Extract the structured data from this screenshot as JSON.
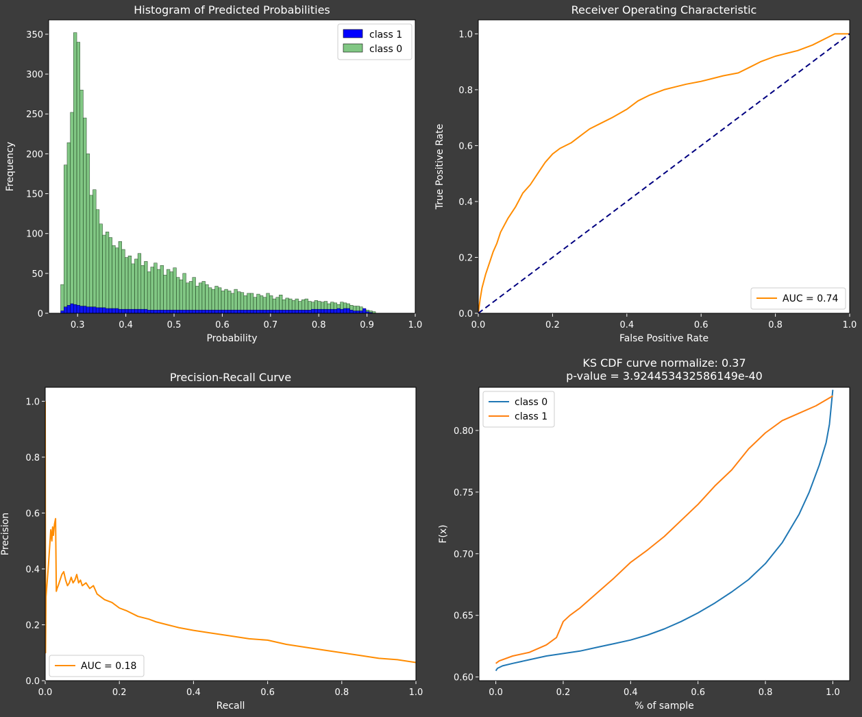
{
  "chart_data": [
    {
      "id": "hist",
      "type": "bar",
      "title": "Histogram of Predicted Probabilities",
      "xlabel": "Probability",
      "ylabel": "Frequency",
      "xlim": [
        0.24,
        1.0
      ],
      "ylim": [
        0,
        368
      ],
      "xticks": [
        0.3,
        0.4,
        0.5,
        0.6,
        0.7,
        0.8,
        0.9,
        1.0
      ],
      "xtick_labels": [
        "0.3",
        "0.4",
        "0.5",
        "0.6",
        "0.7",
        "0.8",
        "0.9",
        "1.0"
      ],
      "yticks": [
        0,
        50,
        100,
        150,
        200,
        250,
        300,
        350
      ],
      "ytick_labels": [
        "0",
        "50",
        "100",
        "150",
        "200",
        "250",
        "300",
        "350"
      ],
      "bin_start": 0.265,
      "bin_width": 0.00666,
      "legend_position": "top-right",
      "series": [
        {
          "name": "class 1",
          "color": "#0000ff",
          "values": [
            3,
            8,
            10,
            12,
            11,
            10,
            9,
            9,
            8,
            8,
            8,
            7,
            7,
            7,
            6,
            6,
            6,
            6,
            5,
            5,
            5,
            5,
            5,
            5,
            5,
            5,
            5,
            4,
            4,
            4,
            4,
            4,
            4,
            4,
            4,
            4,
            4,
            4,
            4,
            4,
            4,
            4,
            4,
            4,
            4,
            4,
            4,
            4,
            4,
            4,
            4,
            4,
            4,
            4,
            4,
            4,
            4,
            4,
            4,
            4,
            4,
            4,
            4,
            4,
            4,
            4,
            4,
            4,
            4,
            4,
            4,
            4,
            4,
            4,
            4,
            4,
            4,
            4,
            5,
            5,
            5,
            5,
            5,
            5,
            5,
            5,
            6,
            5,
            6,
            6,
            4,
            3,
            3,
            3,
            6,
            2,
            1,
            0,
            0,
            0
          ]
        },
        {
          "name": "class 0",
          "color": "#4caf50",
          "values": [
            36,
            186,
            214,
            252,
            352,
            340,
            280,
            245,
            200,
            148,
            155,
            130,
            112,
            98,
            102,
            95,
            85,
            82,
            90,
            80,
            70,
            72,
            62,
            68,
            75,
            60,
            65,
            52,
            58,
            63,
            55,
            60,
            48,
            55,
            52,
            57,
            45,
            42,
            50,
            38,
            40,
            45,
            34,
            38,
            40,
            36,
            32,
            30,
            34,
            32,
            28,
            30,
            28,
            25,
            30,
            27,
            26,
            22,
            25,
            25,
            20,
            24,
            22,
            20,
            25,
            22,
            18,
            20,
            23,
            17,
            19,
            18,
            16,
            18,
            15,
            17,
            18,
            15,
            14,
            16,
            15,
            14,
            15,
            12,
            14,
            13,
            11,
            14,
            13,
            12,
            10,
            9,
            9,
            8,
            5,
            4,
            3,
            2,
            0,
            0
          ]
        }
      ]
    },
    {
      "id": "roc",
      "type": "line",
      "title": "Receiver Operating Characteristic",
      "xlabel": "False Positive Rate",
      "ylabel": "True Positive Rate",
      "xlim": [
        0.0,
        1.0
      ],
      "ylim": [
        0.0,
        1.05
      ],
      "xticks": [
        0,
        0.2,
        0.4,
        0.6,
        0.8,
        1.0
      ],
      "xtick_labels": [
        "0.0",
        "0.2",
        "0.4",
        "0.6",
        "0.8",
        "1.0"
      ],
      "yticks": [
        0,
        0.2,
        0.4,
        0.6,
        0.8,
        1.0
      ],
      "ytick_labels": [
        "0.0",
        "0.2",
        "0.4",
        "0.6",
        "0.8",
        "1.0"
      ],
      "legend_position": "bottom-right",
      "series": [
        {
          "name": "AUC = 0.74",
          "color": "#ff8c00",
          "x": [
            0,
            0.005,
            0.01,
            0.02,
            0.03,
            0.04,
            0.05,
            0.06,
            0.08,
            0.1,
            0.12,
            0.14,
            0.16,
            0.18,
            0.2,
            0.22,
            0.25,
            0.28,
            0.3,
            0.33,
            0.36,
            0.4,
            0.43,
            0.46,
            0.5,
            0.53,
            0.56,
            0.6,
            0.63,
            0.66,
            0.7,
            0.73,
            0.76,
            0.8,
            0.83,
            0.86,
            0.9,
            0.93,
            0.96,
            1.0
          ],
          "y": [
            0,
            0.05,
            0.09,
            0.14,
            0.18,
            0.22,
            0.25,
            0.29,
            0.34,
            0.38,
            0.43,
            0.46,
            0.5,
            0.54,
            0.57,
            0.59,
            0.61,
            0.64,
            0.66,
            0.68,
            0.7,
            0.73,
            0.76,
            0.78,
            0.8,
            0.81,
            0.82,
            0.83,
            0.84,
            0.85,
            0.86,
            0.88,
            0.9,
            0.92,
            0.93,
            0.94,
            0.96,
            0.98,
            1.0,
            1.0
          ]
        },
        {
          "name": "diagonal",
          "color": "#000080",
          "x": [
            0,
            1.0
          ],
          "y": [
            0,
            1.0
          ]
        }
      ]
    },
    {
      "id": "pr",
      "type": "line",
      "title": "Precision-Recall Curve",
      "xlabel": "Recall",
      "ylabel": "Precision",
      "xlim": [
        0.0,
        1.0
      ],
      "ylim": [
        0.0,
        1.05
      ],
      "xticks": [
        0,
        0.2,
        0.4,
        0.6,
        0.8,
        1.0
      ],
      "xtick_labels": [
        "0.0",
        "0.2",
        "0.4",
        "0.6",
        "0.8",
        "1.0"
      ],
      "yticks": [
        0,
        0.2,
        0.4,
        0.6,
        0.8,
        1.0
      ],
      "ytick_labels": [
        "0.0",
        "0.2",
        "0.4",
        "0.6",
        "0.8",
        "1.0"
      ],
      "legend_position": "bottom-left",
      "series": [
        {
          "name": "AUC = 0.18",
          "color": "#ff8c00",
          "x": [
            0,
            0.001,
            0.002,
            0.005,
            0.008,
            0.012,
            0.015,
            0.018,
            0.02,
            0.022,
            0.025,
            0.028,
            0.03,
            0.032,
            0.035,
            0.04,
            0.045,
            0.05,
            0.055,
            0.06,
            0.065,
            0.07,
            0.075,
            0.08,
            0.085,
            0.09,
            0.095,
            0.1,
            0.11,
            0.12,
            0.13,
            0.14,
            0.15,
            0.16,
            0.18,
            0.2,
            0.22,
            0.25,
            0.28,
            0.3,
            0.33,
            0.36,
            0.4,
            0.45,
            0.5,
            0.55,
            0.6,
            0.65,
            0.7,
            0.75,
            0.8,
            0.85,
            0.9,
            0.95,
            1.0
          ],
          "y": [
            1.0,
            0.1,
            0.3,
            0.35,
            0.4,
            0.48,
            0.54,
            0.5,
            0.55,
            0.52,
            0.56,
            0.58,
            0.32,
            0.33,
            0.34,
            0.36,
            0.38,
            0.39,
            0.36,
            0.34,
            0.35,
            0.37,
            0.35,
            0.36,
            0.38,
            0.35,
            0.36,
            0.34,
            0.35,
            0.33,
            0.34,
            0.31,
            0.3,
            0.29,
            0.28,
            0.26,
            0.25,
            0.23,
            0.22,
            0.21,
            0.2,
            0.19,
            0.18,
            0.17,
            0.16,
            0.15,
            0.145,
            0.13,
            0.12,
            0.11,
            0.1,
            0.09,
            0.08,
            0.075,
            0.065
          ]
        }
      ]
    },
    {
      "id": "ks",
      "type": "line",
      "title": "KS CDF curve normalize: 0.37",
      "subtitle": "p-value = 3.924453432586149e-40",
      "xlabel": "% of sample",
      "ylabel": "F(x)",
      "xlim": [
        -0.05,
        1.05
      ],
      "ylim": [
        0.597,
        0.835
      ],
      "xticks": [
        0,
        0.2,
        0.4,
        0.6,
        0.8,
        1.0
      ],
      "xtick_labels": [
        "0.0",
        "0.2",
        "0.4",
        "0.6",
        "0.8",
        "1.0"
      ],
      "yticks": [
        0.6,
        0.65,
        0.7,
        0.75,
        0.8
      ],
      "ytick_labels": [
        "0.60",
        "0.65",
        "0.70",
        "0.75",
        "0.80"
      ],
      "legend_position": "top-left",
      "series": [
        {
          "name": "class 0",
          "color": "#1f77b4",
          "x": [
            0,
            0.005,
            0.02,
            0.05,
            0.1,
            0.15,
            0.2,
            0.25,
            0.3,
            0.35,
            0.4,
            0.45,
            0.5,
            0.55,
            0.6,
            0.65,
            0.7,
            0.75,
            0.8,
            0.85,
            0.9,
            0.93,
            0.96,
            0.98,
            0.99,
            1.0
          ],
          "y": [
            0.605,
            0.607,
            0.609,
            0.611,
            0.614,
            0.617,
            0.619,
            0.621,
            0.624,
            0.627,
            0.63,
            0.634,
            0.639,
            0.645,
            0.652,
            0.66,
            0.669,
            0.679,
            0.692,
            0.709,
            0.732,
            0.75,
            0.772,
            0.79,
            0.805,
            0.833
          ]
        },
        {
          "name": "class 1",
          "color": "#ff7f0e",
          "x": [
            0,
            0.01,
            0.05,
            0.1,
            0.15,
            0.18,
            0.2,
            0.22,
            0.25,
            0.3,
            0.35,
            0.4,
            0.45,
            0.5,
            0.55,
            0.6,
            0.65,
            0.7,
            0.75,
            0.8,
            0.85,
            0.9,
            0.95,
            1.0
          ],
          "y": [
            0.611,
            0.613,
            0.617,
            0.62,
            0.626,
            0.632,
            0.645,
            0.65,
            0.656,
            0.668,
            0.68,
            0.693,
            0.703,
            0.714,
            0.727,
            0.74,
            0.755,
            0.768,
            0.785,
            0.798,
            0.808,
            0.814,
            0.82,
            0.828
          ]
        }
      ]
    }
  ]
}
